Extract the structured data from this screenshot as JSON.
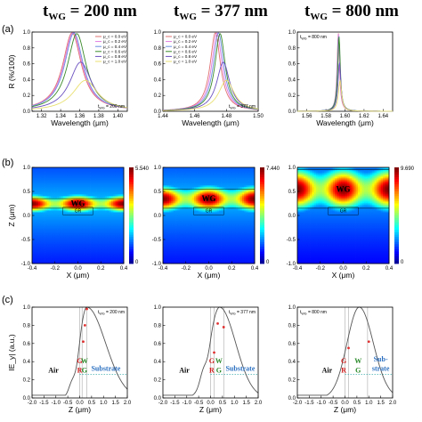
{
  "titles": [
    {
      "prefix": "t",
      "sub": "WG",
      "value": " = 200 nm"
    },
    {
      "prefix": "t",
      "sub": "WG",
      "value": " = 377 nm"
    },
    {
      "prefix": "t",
      "sub": "WG",
      "value": " = 800 nm"
    }
  ],
  "panel_labels": [
    "(a)",
    "(b)",
    "(c)"
  ],
  "colors": {
    "series": [
      "#e07070",
      "#e07be0",
      "#6b8fe0",
      "#3a8a2a",
      "#6b50c0",
      "#e8e070"
    ],
    "field_curve": "#555555",
    "boundary": "#999999",
    "marker": "#e03030",
    "region_air": "#000000",
    "region_gr": "#d02020",
    "region_wg": "#2a8a2a",
    "region_substrate": "#2a6fc0",
    "dashed": "#20a0a0"
  },
  "chart_data": [
    {
      "type": "line",
      "panel": "a",
      "column": 1,
      "xlabel": "Wavelength (μm)",
      "ylabel": "R (%/100)",
      "xlim": [
        1.31,
        1.41
      ],
      "ylim": [
        0,
        1.0
      ],
      "xticks": [
        "1.32",
        "1.34",
        "1.36",
        "1.38",
        "1.40"
      ],
      "yticks": [
        "0.0",
        "0.2",
        "0.4",
        "0.6",
        "0.8",
        "1.0"
      ],
      "legend_location": "top-right",
      "annotation": "t_WG = 200 nm",
      "series": [
        {
          "name": "μ_c = 0.0 eV",
          "center": 1.352,
          "width": 0.012,
          "peak": 0.99
        },
        {
          "name": "μ_c = 0.2 eV",
          "center": 1.353,
          "width": 0.012,
          "peak": 0.99
        },
        {
          "name": "μ_c = 0.4 eV",
          "center": 1.354,
          "width": 0.012,
          "peak": 0.99
        },
        {
          "name": "μ_c = 0.6 eV",
          "center": 1.357,
          "width": 0.012,
          "peak": 0.98
        },
        {
          "name": "μ_c = 0.8 eV",
          "center": 1.361,
          "width": 0.014,
          "peak": 0.62
        },
        {
          "name": "μ_c = 1.0 eV",
          "center": 1.366,
          "width": 0.016,
          "peak": 0.39
        }
      ]
    },
    {
      "type": "line",
      "panel": "a",
      "column": 2,
      "xlabel": "Wavelength (μm)",
      "ylabel": "",
      "xlim": [
        1.44,
        1.5
      ],
      "ylim": [
        0,
        1.0
      ],
      "xticks": [
        "1.44",
        "1.46",
        "1.48",
        "1.50"
      ],
      "yticks": [
        "0.0",
        "0.2",
        "0.4",
        "0.6",
        "0.8",
        "1.0"
      ],
      "legend_location": "top-left",
      "annotation": "t_WG = 377 nm",
      "series": [
        {
          "name": "μ_c = 0.0 eV",
          "center": 1.473,
          "width": 0.004,
          "peak": 0.99
        },
        {
          "name": "μ_c = 0.2 eV",
          "center": 1.474,
          "width": 0.004,
          "peak": 0.99
        },
        {
          "name": "μ_c = 0.4 eV",
          "center": 1.475,
          "width": 0.004,
          "peak": 0.99
        },
        {
          "name": "μ_c = 0.6 eV",
          "center": 1.476,
          "width": 0.004,
          "peak": 0.98
        },
        {
          "name": "μ_c = 0.8 eV",
          "center": 1.478,
          "width": 0.005,
          "peak": 0.62
        },
        {
          "name": "μ_c = 1.0 eV",
          "center": 1.48,
          "width": 0.006,
          "peak": 0.39
        }
      ]
    },
    {
      "type": "line",
      "panel": "a",
      "column": 3,
      "xlabel": "Wavelength (μm)",
      "ylabel": "",
      "xlim": [
        1.55,
        1.65
      ],
      "ylim": [
        0,
        1.0
      ],
      "xticks": [
        "1.56",
        "1.58",
        "1.60",
        "1.62",
        "1.64"
      ],
      "yticks": [
        "0.0",
        "0.2",
        "0.4",
        "0.6",
        "0.8",
        "1.0"
      ],
      "legend_location": "none",
      "annotation": "t_WG = 800 nm",
      "series": [
        {
          "name": "μ_c = 0.0 eV",
          "center": 1.593,
          "width": 0.0015,
          "peak": 0.99
        },
        {
          "name": "μ_c = 0.2 eV",
          "center": 1.5932,
          "width": 0.0015,
          "peak": 0.98
        },
        {
          "name": "μ_c = 0.4 eV",
          "center": 1.5935,
          "width": 0.0016,
          "peak": 0.97
        },
        {
          "name": "μ_c = 0.6 eV",
          "center": 1.5938,
          "width": 0.0016,
          "peak": 0.94
        },
        {
          "name": "μ_c = 0.8 eV",
          "center": 1.5942,
          "width": 0.0018,
          "peak": 0.62
        },
        {
          "name": "μ_c = 1.0 eV",
          "center": 1.5948,
          "width": 0.002,
          "peak": 0.39
        }
      ]
    },
    {
      "type": "heatmap",
      "panel": "b",
      "column": 1,
      "xlabel": "X (μm)",
      "ylabel": "Z (μm)",
      "xlim": [
        -0.4,
        0.4
      ],
      "ylim": [
        -1.0,
        1.0
      ],
      "xticks": [
        "-0.4",
        "-0.2",
        "0.0",
        "0.2",
        "0.4"
      ],
      "yticks": [
        "-1.0",
        "-0.5",
        "0.0",
        "0.5",
        "1.0"
      ],
      "colorbar_max": "5.540",
      "colorbar_min": "0",
      "labels": [
        "WG",
        "GR"
      ],
      "waveguide_top": 0.35,
      "waveguide_bottom": 0.15
    },
    {
      "type": "heatmap",
      "panel": "b",
      "column": 2,
      "xlabel": "X (μm)",
      "ylabel": "",
      "xlim": [
        -0.4,
        0.4
      ],
      "ylim": [
        -1.0,
        1.0
      ],
      "xticks": [
        "-0.4",
        "-0.2",
        "0.0",
        "0.2",
        "0.4"
      ],
      "yticks": [
        "-1.0",
        "-0.5",
        "0.0",
        "0.5",
        "1.0"
      ],
      "colorbar_max": "7.440",
      "colorbar_min": "0",
      "labels": [
        "WG",
        "GR"
      ],
      "waveguide_top": 0.55,
      "waveguide_bottom": 0.15
    },
    {
      "type": "heatmap",
      "panel": "b",
      "column": 3,
      "xlabel": "X (μm)",
      "ylabel": "",
      "xlim": [
        -0.4,
        0.4
      ],
      "ylim": [
        -1.0,
        1.0
      ],
      "xticks": [
        "-0.4",
        "-0.2",
        "0.0",
        "0.2",
        "0.4"
      ],
      "yticks": [
        "-1.0",
        "-0.5",
        "0.0",
        "0.5",
        "1.0"
      ],
      "colorbar_max": "9.690",
      "colorbar_min": "0",
      "labels": [
        "WG",
        "GR"
      ],
      "waveguide_top": 0.95,
      "waveguide_bottom": 0.15
    },
    {
      "type": "line",
      "panel": "c",
      "column": 1,
      "xlabel": "Z (μm)",
      "ylabel": "IE_y| (a.u.)",
      "xlim": [
        -2.0,
        2.0
      ],
      "ylim": [
        0,
        1.0
      ],
      "xticks": [
        "-2.0",
        "-1.5",
        "-1.0",
        "-0.5",
        "0.0",
        "0.5",
        "1.0",
        "1.5",
        "2.0"
      ],
      "yticks": [
        "0.0",
        "0.2",
        "0.4",
        "0.6",
        "0.8",
        "1.0"
      ],
      "annotation": "t_WG = 200 nm",
      "boundaries": [
        0.0,
        0.1,
        0.3
      ],
      "markers": [
        [
          0.15,
          0.62
        ],
        [
          0.22,
          0.8
        ],
        [
          0.3,
          0.98
        ]
      ],
      "regions": [
        {
          "text": "Air",
          "x": -1.1,
          "y": 0.28,
          "color": "region_air"
        },
        {
          "text": "G",
          "x": 0.0,
          "y": 0.38,
          "color": "region_gr"
        },
        {
          "text": "R",
          "x": 0.0,
          "y": 0.28,
          "color": "region_gr"
        },
        {
          "text": "W",
          "x": 0.2,
          "y": 0.38,
          "color": "region_wg"
        },
        {
          "text": "G",
          "x": 0.2,
          "y": 0.28,
          "color": "region_wg"
        },
        {
          "text": "Substrate",
          "x": 1.1,
          "y": 0.3,
          "color": "region_substrate"
        }
      ],
      "dashed_y": 0.26,
      "curve": {
        "peak": 0.3,
        "air_decay": 4.0,
        "sub_decay": 1.2,
        "dip": -0.12
      }
    },
    {
      "type": "line",
      "panel": "c",
      "column": 2,
      "xlabel": "Z (μm)",
      "ylabel": "",
      "xlim": [
        -2.0,
        2.0
      ],
      "ylim": [
        0,
        1.0
      ],
      "xticks": [
        "-2.0",
        "-1.5",
        "-1.0",
        "-0.5",
        "0.0",
        "0.5",
        "1.0",
        "1.5",
        "2.0"
      ],
      "yticks": [
        "0.0",
        "0.2",
        "0.4",
        "0.6",
        "0.8",
        "1.0"
      ],
      "annotation": "t_WG = 377 nm",
      "boundaries": [
        0.0,
        0.15,
        0.55
      ],
      "markers": [
        [
          0.15,
          0.5
        ],
        [
          0.3,
          0.82
        ],
        [
          0.55,
          0.78
        ]
      ],
      "regions": [
        {
          "text": "Air",
          "x": -1.1,
          "y": 0.28,
          "color": "region_air"
        },
        {
          "text": "G",
          "x": 0.05,
          "y": 0.38,
          "color": "region_gr"
        },
        {
          "text": "R",
          "x": 0.05,
          "y": 0.28,
          "color": "region_gr"
        },
        {
          "text": "W",
          "x": 0.35,
          "y": 0.38,
          "color": "region_wg"
        },
        {
          "text": "G",
          "x": 0.35,
          "y": 0.28,
          "color": "region_wg"
        },
        {
          "text": "Substrate",
          "x": 1.25,
          "y": 0.3,
          "color": "region_substrate"
        }
      ],
      "dashed_y": 0.26,
      "curve": {
        "peak": 0.38,
        "air_decay": 3.0,
        "sub_decay": 1.4,
        "dip": -0.1
      }
    },
    {
      "type": "line",
      "panel": "c",
      "column": 3,
      "xlabel": "Z (μm)",
      "ylabel": "",
      "xlim": [
        -2.0,
        2.0
      ],
      "ylim": [
        0,
        1.0
      ],
      "xticks": [
        "-2.0",
        "-1.5",
        "-1.0",
        "-0.5",
        "0.0",
        "0.5",
        "1.0",
        "1.5",
        "2.0"
      ],
      "yticks": [
        "0.0",
        "0.2",
        "0.4",
        "0.6",
        "0.8",
        "1.0"
      ],
      "annotation": "t_WG = 800 nm",
      "boundaries": [
        0.0,
        0.15,
        0.95
      ],
      "markers": [
        [
          0.15,
          0.55
        ],
        [
          1.0,
          0.62
        ]
      ],
      "regions": [
        {
          "text": "Air",
          "x": -0.75,
          "y": 0.28,
          "color": "region_air"
        },
        {
          "text": "G",
          "x": -0.05,
          "y": 0.38,
          "color": "region_gr"
        },
        {
          "text": "R",
          "x": -0.05,
          "y": 0.28,
          "color": "region_gr"
        },
        {
          "text": "W",
          "x": 0.55,
          "y": 0.38,
          "color": "region_wg"
        },
        {
          "text": "G",
          "x": 0.55,
          "y": 0.28,
          "color": "region_wg"
        },
        {
          "text": "Sub-",
          "x": 1.5,
          "y": 0.4,
          "color": "region_substrate"
        },
        {
          "text": "strate",
          "x": 1.5,
          "y": 0.3,
          "color": "region_substrate"
        }
      ],
      "dashed_y": 0.26,
      "curve": {
        "peak": 0.6,
        "air_decay": 2.5,
        "sub_decay": 1.6,
        "dip": 0.0
      }
    }
  ]
}
